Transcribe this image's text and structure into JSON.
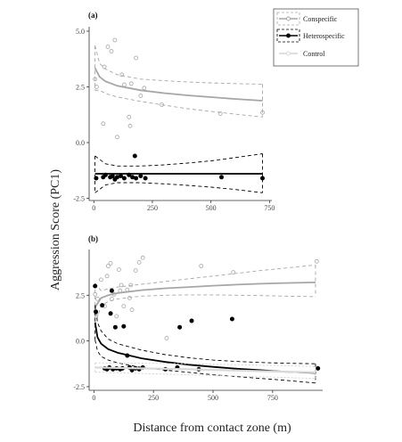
{
  "figure": {
    "y_axis_title": "Aggression Score (PC1)",
    "x_axis_title": "Distance from contact zone (m)"
  },
  "legend": {
    "position": "top-right",
    "items": [
      {
        "label": "Conspecific",
        "series": "conspecific",
        "color": "#a6a6a6",
        "marker": "open-circle",
        "line": "solid",
        "band": "dashed"
      },
      {
        "label": "Heterospecific",
        "series": "heterospecific",
        "color": "#000000",
        "marker": "filled-circle",
        "line": "solid",
        "band": "dashed"
      },
      {
        "label": "Control",
        "series": "control",
        "color": "#d9d9d9",
        "marker": "open-circle",
        "line": "solid",
        "band": "none"
      }
    ]
  },
  "chart_data": [
    {
      "type": "scatter",
      "panel_label": "(a)",
      "xlim": [
        -20,
        760
      ],
      "ylim": [
        -2.6,
        5.2
      ],
      "x_ticks": [
        0,
        250,
        500,
        750
      ],
      "y_ticks": [
        -2.5,
        0.0,
        2.5,
        5.0
      ],
      "y_tick_labels": [
        "-2.5",
        "0.0",
        "2.5",
        "5.0"
      ],
      "grid": false,
      "series": [
        {
          "key": "conspecific",
          "points": [
            [
              5,
              2.85
            ],
            [
              12,
              2.5
            ],
            [
              40,
              0.85
            ],
            [
              45,
              3.4
            ],
            [
              60,
              4.3
            ],
            [
              75,
              4.1
            ],
            [
              90,
              4.6
            ],
            [
              100,
              0.25
            ],
            [
              120,
              3.05
            ],
            [
              130,
              2.6
            ],
            [
              150,
              1.15
            ],
            [
              155,
              0.75
            ],
            [
              160,
              2.65
            ],
            [
              180,
              3.8
            ],
            [
              200,
              2.1
            ],
            [
              215,
              2.45
            ],
            [
              290,
              1.7
            ],
            [
              540,
              1.3
            ],
            [
              720,
              1.35
            ]
          ],
          "fit": [
            [
              5,
              3.35
            ],
            [
              25,
              2.95
            ],
            [
              50,
              2.75
            ],
            [
              100,
              2.55
            ],
            [
              200,
              2.35
            ],
            [
              300,
              2.22
            ],
            [
              400,
              2.12
            ],
            [
              500,
              2.04
            ],
            [
              600,
              1.96
            ],
            [
              720,
              1.88
            ]
          ],
          "ci_upper": [
            [
              5,
              4.35
            ],
            [
              25,
              3.55
            ],
            [
              50,
              3.3
            ],
            [
              100,
              3.05
            ],
            [
              200,
              2.85
            ],
            [
              300,
              2.78
            ],
            [
              400,
              2.72
            ],
            [
              500,
              2.68
            ],
            [
              600,
              2.65
            ],
            [
              720,
              2.62
            ]
          ],
          "ci_lower": [
            [
              5,
              2.35
            ],
            [
              25,
              2.35
            ],
            [
              50,
              2.2
            ],
            [
              100,
              2.05
            ],
            [
              200,
              1.85
            ],
            [
              300,
              1.68
            ],
            [
              400,
              1.52
            ],
            [
              500,
              1.4
            ],
            [
              600,
              1.28
            ],
            [
              720,
              1.15
            ]
          ]
        },
        {
          "key": "heterospecific",
          "points": [
            [
              10,
              -1.6
            ],
            [
              40,
              -1.55
            ],
            [
              50,
              -1.45
            ],
            [
              70,
              -1.55
            ],
            [
              80,
              -1.5
            ],
            [
              90,
              -1.65
            ],
            [
              100,
              -1.55
            ],
            [
              115,
              -1.5
            ],
            [
              130,
              -1.6
            ],
            [
              150,
              -1.45
            ],
            [
              165,
              -1.55
            ],
            [
              175,
              -0.6
            ],
            [
              180,
              -1.6
            ],
            [
              200,
              -1.5
            ],
            [
              220,
              -1.6
            ],
            [
              545,
              -1.55
            ],
            [
              720,
              -1.6
            ]
          ],
          "fit": [
            [
              5,
              -1.4
            ],
            [
              250,
              -1.4
            ],
            [
              500,
              -1.4
            ],
            [
              720,
              -1.4
            ]
          ],
          "ci_upper": [
            [
              5,
              -0.6
            ],
            [
              50,
              -0.95
            ],
            [
              100,
              -1.05
            ],
            [
              200,
              -1.05
            ],
            [
              300,
              -1.0
            ],
            [
              400,
              -0.92
            ],
            [
              500,
              -0.82
            ],
            [
              600,
              -0.68
            ],
            [
              720,
              -0.5
            ]
          ],
          "ci_lower": [
            [
              5,
              -2.25
            ],
            [
              50,
              -1.9
            ],
            [
              100,
              -1.8
            ],
            [
              200,
              -1.8
            ],
            [
              300,
              -1.85
            ],
            [
              400,
              -1.92
            ],
            [
              500,
              -2.0
            ],
            [
              600,
              -2.1
            ],
            [
              720,
              -2.25
            ]
          ]
        }
      ]
    },
    {
      "type": "scatter",
      "panel_label": "(b)",
      "xlim": [
        -20,
        960
      ],
      "ylim": [
        -2.7,
        5.0
      ],
      "x_ticks": [
        0,
        250,
        500,
        750
      ],
      "y_ticks": [
        -2.5,
        0.0,
        2.5
      ],
      "y_tick_labels": [
        "-2.5",
        "0.0",
        "2.5"
      ],
      "grid": false,
      "series": [
        {
          "key": "conspecific",
          "points": [
            [
              5,
              2.55
            ],
            [
              10,
              1.45
            ],
            [
              15,
              2.3
            ],
            [
              30,
              3.35
            ],
            [
              35,
              1.95
            ],
            [
              45,
              1.9
            ],
            [
              55,
              3.55
            ],
            [
              60,
              4.1
            ],
            [
              70,
              4.25
            ],
            [
              75,
              2.3
            ],
            [
              85,
              2.55
            ],
            [
              95,
              1.35
            ],
            [
              105,
              3.9
            ],
            [
              110,
              2.75
            ],
            [
              115,
              3.05
            ],
            [
              125,
              1.9
            ],
            [
              140,
              2.8
            ],
            [
              150,
              2.35
            ],
            [
              155,
              3.05
            ],
            [
              160,
              1.7
            ],
            [
              175,
              3.85
            ],
            [
              190,
              4.3
            ],
            [
              205,
              4.55
            ],
            [
              305,
              0.15
            ],
            [
              450,
              4.1
            ],
            [
              585,
              3.75
            ],
            [
              935,
              4.35
            ]
          ],
          "fit": [
            [
              5,
              1.85
            ],
            [
              30,
              2.35
            ],
            [
              60,
              2.5
            ],
            [
              100,
              2.62
            ],
            [
              200,
              2.78
            ],
            [
              300,
              2.88
            ],
            [
              400,
              2.95
            ],
            [
              500,
              3.02
            ],
            [
              600,
              3.08
            ],
            [
              700,
              3.13
            ],
            [
              800,
              3.17
            ],
            [
              930,
              3.2
            ]
          ],
          "ci_upper": [
            [
              5,
              3.15
            ],
            [
              30,
              2.75
            ],
            [
              60,
              2.85
            ],
            [
              100,
              2.95
            ],
            [
              200,
              3.1
            ],
            [
              300,
              3.25
            ],
            [
              400,
              3.4
            ],
            [
              500,
              3.55
            ],
            [
              600,
              3.7
            ],
            [
              700,
              3.85
            ],
            [
              800,
              3.98
            ],
            [
              930,
              4.15
            ]
          ],
          "ci_lower": [
            [
              5,
              0.85
            ],
            [
              30,
              1.95
            ],
            [
              60,
              2.15
            ],
            [
              100,
              2.3
            ],
            [
              200,
              2.45
            ],
            [
              300,
              2.5
            ],
            [
              400,
              2.52
            ],
            [
              500,
              2.52
            ],
            [
              600,
              2.5
            ],
            [
              700,
              2.48
            ],
            [
              800,
              2.45
            ],
            [
              930,
              2.42
            ]
          ]
        },
        {
          "key": "heterospecific",
          "points": [
            [
              5,
              3.0
            ],
            [
              8,
              1.6
            ],
            [
              35,
              1.95
            ],
            [
              45,
              -1.5
            ],
            [
              55,
              -1.55
            ],
            [
              65,
              -1.45
            ],
            [
              70,
              1.5
            ],
            [
              75,
              2.75
            ],
            [
              80,
              -1.55
            ],
            [
              90,
              0.75
            ],
            [
              95,
              -1.5
            ],
            [
              110,
              -1.55
            ],
            [
              120,
              -1.5
            ],
            [
              125,
              0.8
            ],
            [
              140,
              -0.8
            ],
            [
              150,
              -1.45
            ],
            [
              160,
              -1.6
            ],
            [
              175,
              -1.5
            ],
            [
              190,
              -1.55
            ],
            [
              205,
              -1.45
            ],
            [
              300,
              -1.55
            ],
            [
              350,
              -1.45
            ],
            [
              360,
              0.75
            ],
            [
              410,
              1.1
            ],
            [
              440,
              -1.55
            ],
            [
              580,
              1.2
            ],
            [
              940,
              -1.5
            ]
          ],
          "fit": [
            [
              5,
              1.0
            ],
            [
              15,
              0.2
            ],
            [
              30,
              -0.15
            ],
            [
              60,
              -0.45
            ],
            [
              100,
              -0.65
            ],
            [
              200,
              -0.95
            ],
            [
              300,
              -1.15
            ],
            [
              400,
              -1.3
            ],
            [
              500,
              -1.42
            ],
            [
              600,
              -1.52
            ],
            [
              700,
              -1.6
            ],
            [
              800,
              -1.68
            ],
            [
              930,
              -1.75
            ]
          ],
          "ci_upper": [
            [
              5,
              1.95
            ],
            [
              15,
              1.0
            ],
            [
              30,
              0.55
            ],
            [
              60,
              0.1
            ],
            [
              100,
              -0.15
            ],
            [
              200,
              -0.5
            ],
            [
              300,
              -0.75
            ],
            [
              400,
              -0.92
            ],
            [
              500,
              -1.05
            ],
            [
              600,
              -1.12
            ],
            [
              700,
              -1.18
            ],
            [
              800,
              -1.22
            ],
            [
              930,
              -1.25
            ]
          ],
          "ci_lower": [
            [
              5,
              0.05
            ],
            [
              15,
              -0.55
            ],
            [
              30,
              -0.85
            ],
            [
              60,
              -1.05
            ],
            [
              100,
              -1.2
            ],
            [
              200,
              -1.45
            ],
            [
              300,
              -1.6
            ],
            [
              400,
              -1.72
            ],
            [
              500,
              -1.85
            ],
            [
              600,
              -1.95
            ],
            [
              700,
              -2.05
            ],
            [
              800,
              -2.15
            ],
            [
              930,
              -2.3
            ]
          ]
        },
        {
          "key": "control",
          "points": [],
          "fit": [
            [
              5,
              -1.45
            ],
            [
              200,
              -1.5
            ],
            [
              400,
              -1.55
            ],
            [
              600,
              -1.62
            ],
            [
              800,
              -1.68
            ],
            [
              930,
              -1.72
            ]
          ],
          "ci_upper": [
            [
              5,
              -1.2
            ],
            [
              200,
              -1.22
            ],
            [
              400,
              -1.25
            ],
            [
              600,
              -1.3
            ],
            [
              800,
              -1.35
            ],
            [
              930,
              -1.4
            ]
          ],
          "ci_lower": [
            [
              5,
              -1.7
            ],
            [
              200,
              -1.78
            ],
            [
              400,
              -1.85
            ],
            [
              600,
              -1.92
            ],
            [
              800,
              -2.0
            ],
            [
              930,
              -2.05
            ]
          ]
        }
      ]
    }
  ]
}
